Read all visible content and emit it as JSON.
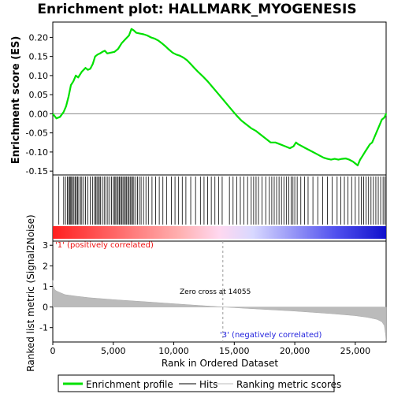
{
  "chart_data": {
    "type": "line",
    "title": "Enrichment plot: HALLMARK_MYOGENESIS",
    "top_panel": {
      "ylabel": "Enrichment score (ES)",
      "ylim": [
        -0.16,
        0.24
      ],
      "yticks": [
        "0.20",
        "0.15",
        "0.10",
        "0.05",
        "0.00",
        "-0.05",
        "-0.10",
        "-0.15"
      ],
      "ytick_values": [
        0.2,
        0.15,
        0.1,
        0.05,
        0.0,
        -0.05,
        -0.1,
        -0.15
      ],
      "series": [
        {
          "name": "Enrichment profile",
          "color": "#00e000",
          "x": [
            0,
            300,
            600,
            900,
            1100,
            1300,
            1500,
            1700,
            1900,
            2100,
            2400,
            2700,
            2900,
            3100,
            3300,
            3500,
            3700,
            3900,
            4100,
            4300,
            4500,
            4800,
            5100,
            5400,
            5700,
            6000,
            6300,
            6500,
            6700,
            6900,
            7200,
            7500,
            7800,
            8100,
            8400,
            8700,
            9000,
            9300,
            9600,
            9900,
            10200,
            10500,
            10800,
            11100,
            11400,
            11700,
            12000,
            12400,
            12800,
            13200,
            13600,
            14000,
            14400,
            14800,
            15200,
            15600,
            16000,
            16400,
            16800,
            17200,
            17600,
            18000,
            18400,
            18800,
            19200,
            19600,
            19900,
            20100,
            20300,
            20600,
            20900,
            21200,
            21500,
            21800,
            22100,
            22400,
            22700,
            23000,
            23300,
            23600,
            23900,
            24200,
            24500,
            24800,
            25000,
            25200,
            25400,
            25600,
            25800,
            26000,
            26200,
            26400,
            26600,
            26800,
            27000,
            27200,
            27400,
            27550
          ],
          "y": [
            0.0,
            -0.012,
            -0.008,
            0.005,
            0.02,
            0.045,
            0.075,
            0.085,
            0.1,
            0.095,
            0.11,
            0.12,
            0.115,
            0.118,
            0.13,
            0.15,
            0.155,
            0.158,
            0.162,
            0.165,
            0.158,
            0.16,
            0.162,
            0.17,
            0.185,
            0.195,
            0.205,
            0.222,
            0.218,
            0.212,
            0.21,
            0.208,
            0.205,
            0.2,
            0.197,
            0.192,
            0.185,
            0.177,
            0.168,
            0.16,
            0.155,
            0.152,
            0.147,
            0.14,
            0.13,
            0.12,
            0.11,
            0.098,
            0.085,
            0.07,
            0.055,
            0.04,
            0.025,
            0.01,
            -0.005,
            -0.018,
            -0.028,
            -0.038,
            -0.045,
            -0.055,
            -0.065,
            -0.075,
            -0.075,
            -0.08,
            -0.085,
            -0.09,
            -0.085,
            -0.075,
            -0.08,
            -0.085,
            -0.09,
            -0.095,
            -0.1,
            -0.105,
            -0.11,
            -0.115,
            -0.118,
            -0.12,
            -0.118,
            -0.12,
            -0.118,
            -0.117,
            -0.12,
            -0.125,
            -0.13,
            -0.135,
            -0.12,
            -0.11,
            -0.1,
            -0.09,
            -0.08,
            -0.075,
            -0.06,
            -0.045,
            -0.03,
            -0.015,
            -0.01,
            0.0
          ]
        }
      ]
    },
    "hits_panel": {
      "hit_positions": [
        500,
        900,
        1050,
        1200,
        1300,
        1400,
        1480,
        1550,
        1650,
        1750,
        1850,
        1950,
        2050,
        2150,
        2300,
        2400,
        2550,
        2700,
        2900,
        3100,
        3300,
        3450,
        3550,
        3650,
        3750,
        3850,
        3950,
        4100,
        4250,
        4400,
        4550,
        4700,
        4850,
        5000,
        5100,
        5200,
        5300,
        5400,
        5500,
        5600,
        5700,
        5800,
        5900,
        6000,
        6100,
        6200,
        6300,
        6400,
        6500,
        6600,
        6700,
        6850,
        7000,
        7150,
        7300,
        7500,
        7700,
        7900,
        8200,
        8500,
        8800,
        9100,
        9400,
        9800,
        10100,
        10400,
        10700,
        11000,
        11400,
        11800,
        12200,
        12500,
        12800,
        13100,
        13400,
        13700,
        14000,
        14600,
        14900,
        15200,
        15500,
        15800,
        16100,
        16400,
        16600,
        16800,
        17000,
        17300,
        17600,
        17900,
        18100,
        18300,
        18500,
        18700,
        18900,
        19100,
        19300,
        19500,
        19700,
        19850,
        20000,
        20200,
        20500,
        20800,
        21100,
        21500,
        21900,
        22300,
        22700,
        23100,
        23500,
        23800,
        24100,
        24400,
        24700,
        25000,
        25300,
        25500,
        25700,
        25900,
        26100,
        26300,
        26500,
        26700,
        26900,
        27100,
        27300,
        27450
      ]
    },
    "bottom_panel": {
      "ylabel": "Ranked list metric (Signal2Noise)",
      "xlabel": "Rank in Ordered Dataset",
      "ylim": [
        -1.7,
        3.2
      ],
      "xlim": [
        0,
        28000
      ],
      "yticks": [
        "3",
        "2",
        "1",
        "0",
        "-1"
      ],
      "ytick_values": [
        3,
        2,
        1,
        0,
        -1
      ],
      "xticks": [
        "0",
        "5,000",
        "10,000",
        "15,000",
        "20,000",
        "25,000"
      ],
      "xtick_values": [
        0,
        5000,
        10000,
        15000,
        20000,
        25000
      ],
      "metric_x": [
        0,
        50,
        150,
        300,
        600,
        1000,
        2000,
        3000,
        5000,
        8000,
        11000,
        14055,
        17000,
        20000,
        23000,
        25000,
        26000,
        26800,
        27200,
        27400,
        27500,
        27550
      ],
      "metric_y": [
        1.3,
        1.0,
        0.85,
        0.78,
        0.7,
        0.6,
        0.52,
        0.45,
        0.36,
        0.24,
        0.12,
        0.0,
        -0.1,
        -0.2,
        -0.32,
        -0.42,
        -0.5,
        -0.6,
        -0.72,
        -0.9,
        -1.3,
        -1.65
      ],
      "zero_cross": 14055,
      "zero_cross_label": "Zero cross at 14055",
      "pos_label": "'1' (positively correlated)",
      "neg_label": "'3' (negatively correlated)",
      "pos_color": "#ee1111",
      "neg_color": "#2222dd"
    },
    "n_genes": 27550,
    "legend": {
      "placement": "bottom",
      "items": [
        {
          "label": "Enrichment profile",
          "color": "#00e000"
        },
        {
          "label": "Hits",
          "color": "#000000"
        },
        {
          "label": "Ranking metric scores",
          "color": "#bbbbbb"
        }
      ]
    }
  }
}
